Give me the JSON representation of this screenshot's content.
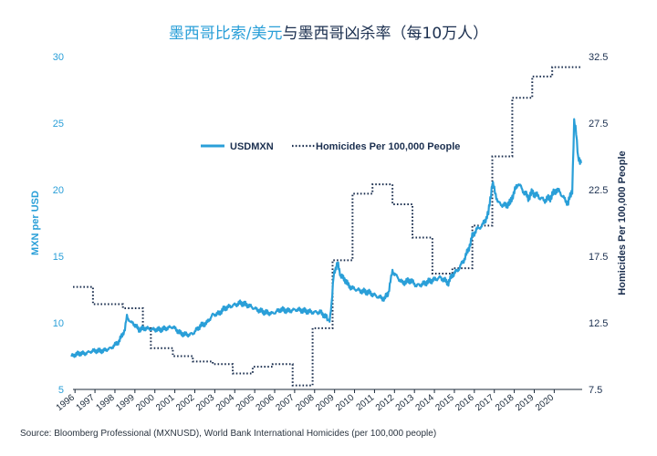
{
  "chart_data": {
    "type": "line",
    "title_part1": "墨西哥比索/美元",
    "title_part2": "与墨西哥凶杀率（每10万人）",
    "ylabel_left": "MXN per USD",
    "ylabel_right": "Homicides Per 100,000 People",
    "ylim_left": [
      5,
      30
    ],
    "ylim_right": [
      7.5,
      32.5
    ],
    "left_ticks": [
      "5",
      "10",
      "15",
      "20",
      "25",
      "30"
    ],
    "right_ticks": [
      "7.5",
      "12.5",
      "17.5",
      "22.5",
      "27.5",
      "32.5"
    ],
    "x_tick_labels": [
      "1996",
      "1997",
      "1998",
      "1999",
      "2000",
      "2001",
      "2002",
      "2003",
      "2004",
      "2005",
      "2006",
      "2007",
      "2008",
      "2009",
      "2010",
      "2011",
      "2012",
      "2013",
      "2014",
      "2015",
      "2016",
      "2017",
      "2018",
      "2019",
      "2020"
    ],
    "xlim": [
      1996,
      2021.5
    ],
    "legend": {
      "position": "top-center"
    },
    "grid": false,
    "colors": {
      "usdmxn": "#2a9fd8",
      "homicides": "#1b2f4f",
      "title1": "#2a9fd8",
      "title2": "#1b2f4f"
    },
    "series": [
      {
        "name": "USDMXN",
        "axis": "left",
        "style": "solid",
        "x": [
          1995.9,
          1996.3,
          1996.6,
          1997.0,
          1997.5,
          1997.9,
          1998.3,
          1998.6,
          1998.7,
          1998.9,
          1999.0,
          1999.3,
          1999.6,
          2000.0,
          2000.4,
          2000.7,
          2001.0,
          2001.4,
          2001.8,
          2002.0,
          2002.4,
          2002.7,
          2003.0,
          2003.3,
          2003.6,
          2004.0,
          2004.4,
          2004.8,
          2005.2,
          2005.6,
          2006.0,
          2006.4,
          2006.8,
          2007.2,
          2007.6,
          2008.0,
          2008.4,
          2008.7,
          2008.85,
          2008.95,
          2009.05,
          2009.15,
          2009.25,
          2009.4,
          2009.6,
          2009.8,
          2010.0,
          2010.4,
          2010.8,
          2011.2,
          2011.6,
          2011.8,
          2012.0,
          2012.2,
          2012.5,
          2012.9,
          2013.2,
          2013.5,
          2013.8,
          2014.0,
          2014.4,
          2014.8,
          2015.0,
          2015.3,
          2015.6,
          2015.8,
          2016.0,
          2016.2,
          2016.5,
          2016.8,
          2017.0,
          2017.3,
          2017.6,
          2017.9,
          2018.0,
          2018.3,
          2018.5,
          2018.8,
          2019.0,
          2019.3,
          2019.6,
          2019.9,
          2020.0,
          2020.2,
          2020.4,
          2020.6,
          2020.8,
          2021.0,
          2021.1,
          2021.2,
          2021.3,
          2021.45
        ],
        "y": [
          7.5,
          7.7,
          7.7,
          7.9,
          7.9,
          8.1,
          8.6,
          9.5,
          10.5,
          10.0,
          10.0,
          9.5,
          9.6,
          9.5,
          9.5,
          9.6,
          9.7,
          9.2,
          9.1,
          9.2,
          9.8,
          10.0,
          10.6,
          10.7,
          11.1,
          11.3,
          11.5,
          11.3,
          11.0,
          10.8,
          10.7,
          11.0,
          10.9,
          11.0,
          10.9,
          10.8,
          10.8,
          10.4,
          10.1,
          11.5,
          13.5,
          14.0,
          14.7,
          13.5,
          13.3,
          12.8,
          12.6,
          12.4,
          12.3,
          12.0,
          11.8,
          12.3,
          13.9,
          13.5,
          13.0,
          13.2,
          12.8,
          12.9,
          13.1,
          13.2,
          13.4,
          13.0,
          13.6,
          14.0,
          14.8,
          15.5,
          16.5,
          17.0,
          17.3,
          18.2,
          20.5,
          19.0,
          18.8,
          19.0,
          19.5,
          20.5,
          20.0,
          19.4,
          19.8,
          19.5,
          19.2,
          19.4,
          19.6,
          20.0,
          19.8,
          19.3,
          19.0,
          20.0,
          25.0,
          24.3,
          22.5,
          22.0
        ]
      },
      {
        "name": "Homicides Per 100,000 People",
        "axis": "right",
        "style": "dotted-step",
        "x": [
          1996.0,
          1996.5,
          1997.0,
          1998.5,
          1999.5,
          1999.9,
          2001.0,
          2002.0,
          2003.0,
          2004.0,
          2005.0,
          2006.0,
          2007.0,
          2008.0,
          2009.0,
          2010.0,
          2011.0,
          2012.0,
          2013.0,
          2014.0,
          2015.0,
          2016.0,
          2017.0,
          2018.0,
          2019.0,
          2020.0,
          2021.0,
          2021.45
        ],
        "y": [
          15.2,
          15.2,
          13.9,
          13.6,
          12.1,
          10.6,
          10.0,
          9.6,
          9.4,
          8.7,
          9.2,
          9.4,
          7.8,
          12.1,
          17.2,
          22.2,
          22.9,
          21.4,
          18.9,
          16.2,
          16.6,
          19.8,
          25.0,
          29.4,
          31.0,
          31.7,
          31.7,
          31.7
        ]
      }
    ]
  },
  "source_text": "Source: Bloomberg Professional (MXNUSD), World Bank International Homicides (per 100,000 people)"
}
